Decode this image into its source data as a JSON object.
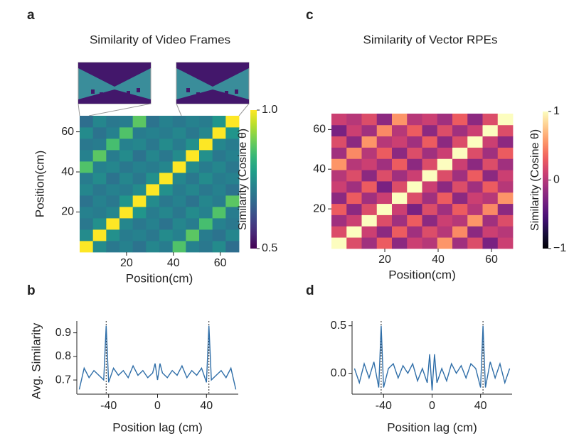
{
  "chart_data": [
    {
      "type": "heatmap",
      "panel_label": "a",
      "title": "Similarity of Video Frames",
      "xlabel": "Position(cm)",
      "ylabel": "Position(cm)",
      "xlim": [
        0,
        68
      ],
      "ylim": [
        0,
        68
      ],
      "xticks": [
        20,
        40,
        60
      ],
      "yticks": [
        20,
        40,
        60
      ],
      "cmap": "viridis",
      "zlim": [
        0.5,
        1
      ],
      "colorbar_label": "Similarity (Cosine θ)",
      "colorbar_ticks": [
        {
          "value": 1,
          "label": "1.0"
        },
        0.5
      ],
      "z": [
        [
          1.0,
          0.74,
          0.7,
          0.72,
          0.69,
          0.73,
          0.71,
          0.86,
          0.72,
          0.7,
          0.74,
          0.68
        ],
        [
          0.74,
          1.0,
          0.75,
          0.71,
          0.72,
          0.7,
          0.74,
          0.72,
          0.87,
          0.71,
          0.69,
          0.73
        ],
        [
          0.7,
          0.75,
          1.0,
          0.73,
          0.7,
          0.72,
          0.69,
          0.73,
          0.71,
          0.85,
          0.72,
          0.7
        ],
        [
          0.72,
          0.71,
          0.73,
          1.0,
          0.76,
          0.71,
          0.73,
          0.7,
          0.74,
          0.72,
          0.86,
          0.71
        ],
        [
          0.69,
          0.72,
          0.7,
          0.76,
          1.0,
          0.74,
          0.7,
          0.72,
          0.69,
          0.73,
          0.71,
          0.87
        ],
        [
          0.73,
          0.7,
          0.72,
          0.71,
          0.74,
          1.0,
          0.75,
          0.71,
          0.73,
          0.7,
          0.72,
          0.69
        ],
        [
          0.71,
          0.74,
          0.69,
          0.73,
          0.7,
          0.75,
          1.0,
          0.73,
          0.7,
          0.74,
          0.71,
          0.72
        ],
        [
          0.86,
          0.72,
          0.73,
          0.7,
          0.72,
          0.71,
          0.73,
          1.0,
          0.74,
          0.71,
          0.73,
          0.7
        ],
        [
          0.72,
          0.87,
          0.71,
          0.74,
          0.69,
          0.73,
          0.7,
          0.74,
          1.0,
          0.75,
          0.7,
          0.72
        ],
        [
          0.7,
          0.71,
          0.85,
          0.72,
          0.73,
          0.7,
          0.74,
          0.71,
          0.75,
          1.0,
          0.73,
          0.71
        ],
        [
          0.74,
          0.69,
          0.72,
          0.86,
          0.71,
          0.72,
          0.71,
          0.73,
          0.7,
          0.73,
          1.0,
          0.76
        ],
        [
          0.68,
          0.73,
          0.7,
          0.71,
          0.87,
          0.69,
          0.72,
          0.7,
          0.72,
          0.71,
          0.76,
          1.0
        ]
      ]
    },
    {
      "type": "line",
      "panel_label": "b",
      "xlabel": "Position lag (cm)",
      "ylabel": "Avg. Similarity",
      "color": "#2f6ea8",
      "xlim": [
        -66,
        66
      ],
      "ylim": [
        0.64,
        0.95
      ],
      "xticks": [
        -40,
        0,
        40
      ],
      "yticks": [
        0.7,
        0.8,
        0.9
      ],
      "vlines": [
        -42,
        42
      ],
      "x": [
        -64,
        -60,
        -56,
        -52,
        -48,
        -44,
        -42,
        -40,
        -36,
        -32,
        -28,
        -24,
        -20,
        -16,
        -12,
        -8,
        -4,
        -2,
        0,
        2,
        4,
        8,
        12,
        16,
        20,
        24,
        28,
        32,
        36,
        40,
        42,
        44,
        48,
        52,
        56,
        60,
        64
      ],
      "values": [
        0.66,
        0.75,
        0.71,
        0.74,
        0.72,
        0.7,
        0.93,
        0.69,
        0.75,
        0.72,
        0.74,
        0.71,
        0.76,
        0.72,
        0.74,
        0.71,
        0.73,
        0.77,
        0.7,
        0.77,
        0.73,
        0.71,
        0.74,
        0.72,
        0.76,
        0.71,
        0.74,
        0.72,
        0.75,
        0.69,
        0.93,
        0.7,
        0.72,
        0.74,
        0.71,
        0.75,
        0.66
      ]
    },
    {
      "type": "heatmap",
      "panel_label": "c",
      "title": "Similarity of Vector RPEs",
      "xlabel": "Position(cm)",
      "xlim": [
        0,
        68
      ],
      "ylim": [
        0,
        68
      ],
      "xticks": [
        20,
        40,
        60
      ],
      "yticks": [
        20,
        40,
        60
      ],
      "cmap": "magma",
      "zlim": [
        -1,
        1
      ],
      "colorbar_label": "Similarity (Cosine θ)",
      "colorbar_ticks": [
        1,
        0,
        {
          "value": -1,
          "label": "−1"
        }
      ],
      "z": [
        [
          1,
          0.2,
          -0.1,
          0.3,
          -0.2,
          0.1,
          0.0,
          0.55,
          -0.1,
          0.2,
          -0.3,
          0.1
        ],
        [
          0.2,
          1,
          0.1,
          -0.2,
          0.3,
          -0.1,
          0.2,
          0.0,
          0.5,
          -0.2,
          0.1,
          0.0
        ],
        [
          -0.1,
          0.1,
          1,
          0.2,
          -0.1,
          0.3,
          -0.2,
          0.1,
          0.0,
          0.55,
          -0.1,
          0.2
        ],
        [
          0.3,
          -0.2,
          0.2,
          1,
          0.1,
          -0.3,
          0.2,
          -0.1,
          0.3,
          0.0,
          0.5,
          -0.2
        ],
        [
          -0.2,
          0.3,
          -0.1,
          0.1,
          1,
          0.2,
          -0.1,
          0.3,
          -0.2,
          0.1,
          0.0,
          0.55
        ],
        [
          0.1,
          -0.1,
          0.3,
          -0.3,
          0.2,
          1,
          0.1,
          -0.2,
          0.2,
          -0.1,
          0.3,
          0.0
        ],
        [
          0.0,
          0.2,
          -0.2,
          0.2,
          -0.1,
          0.1,
          1,
          0.2,
          -0.1,
          0.3,
          -0.2,
          0.1
        ],
        [
          0.55,
          0.0,
          0.1,
          -0.1,
          0.3,
          -0.2,
          0.2,
          1,
          0.1,
          -0.2,
          0.2,
          -0.1
        ],
        [
          -0.1,
          0.5,
          0.0,
          0.3,
          -0.2,
          0.2,
          -0.1,
          0.1,
          1,
          0.2,
          -0.1,
          0.3
        ],
        [
          0.2,
          -0.2,
          0.55,
          0.0,
          0.1,
          -0.1,
          0.3,
          -0.2,
          0.2,
          1,
          0.1,
          -0.2
        ],
        [
          -0.3,
          0.1,
          -0.1,
          0.5,
          0.0,
          0.3,
          -0.2,
          0.2,
          -0.1,
          0.1,
          1,
          0.2
        ],
        [
          0.1,
          0.0,
          0.2,
          -0.2,
          0.55,
          0.0,
          0.1,
          -0.1,
          0.3,
          -0.2,
          0.2,
          1
        ]
      ]
    },
    {
      "type": "line",
      "panel_label": "d",
      "xlabel": "Position lag (cm)",
      "color": "#2f6ea8",
      "xlim": [
        -66,
        66
      ],
      "ylim": [
        -0.22,
        0.55
      ],
      "xticks": [
        -40,
        0,
        40
      ],
      "yticks": [
        {
          "value": 0,
          "label": "0.0"
        },
        {
          "value": 0.5,
          "label": "0.5"
        }
      ],
      "vlines": [
        -42,
        42
      ],
      "x": [
        -64,
        -60,
        -56,
        -52,
        -48,
        -44,
        -42,
        -40,
        -36,
        -32,
        -28,
        -24,
        -20,
        -16,
        -12,
        -8,
        -4,
        -2,
        0,
        2,
        4,
        8,
        12,
        16,
        20,
        24,
        28,
        32,
        36,
        40,
        42,
        44,
        48,
        52,
        56,
        60,
        64
      ],
      "values": [
        0.05,
        -0.1,
        0.1,
        -0.05,
        0.12,
        -0.15,
        0.5,
        -0.15,
        0.05,
        0.1,
        -0.05,
        0.08,
        0.0,
        0.1,
        -0.08,
        0.05,
        -0.1,
        0.2,
        -0.18,
        0.2,
        -0.1,
        0.05,
        -0.08,
        0.1,
        0.0,
        0.08,
        -0.05,
        0.1,
        0.05,
        -0.15,
        0.5,
        -0.15,
        0.12,
        -0.05,
        0.1,
        -0.1,
        0.05
      ]
    }
  ]
}
